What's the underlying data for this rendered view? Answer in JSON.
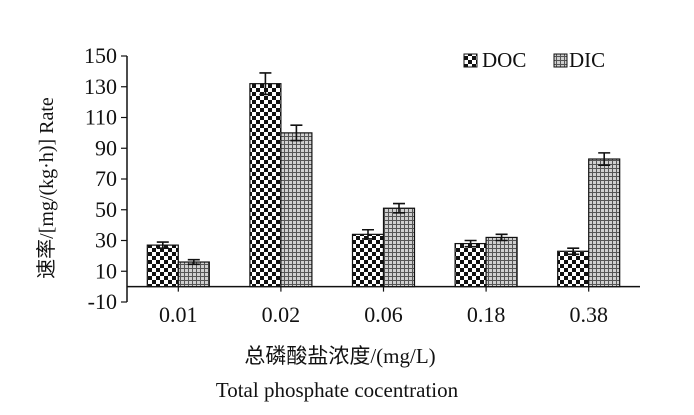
{
  "chart_data": {
    "type": "bar",
    "categories": [
      "0.01",
      "0.02",
      "0.06",
      "0.18",
      "0.38"
    ],
    "series": [
      {
        "name": "DOC",
        "pattern": "checker",
        "values": [
          27,
          132,
          34,
          28,
          23
        ],
        "errors": [
          2,
          7,
          3,
          2,
          2
        ]
      },
      {
        "name": "DIC",
        "pattern": "grid",
        "values": [
          16,
          100,
          51,
          32,
          83
        ],
        "errors": [
          1.5,
          5,
          3,
          2,
          4
        ]
      }
    ],
    "ylabel": "速率/[mg/(kg·h)] Rate",
    "xlabel": "总磷酸盐浓度/(mg/L)",
    "xlabel2": "Total phosphate cocentration",
    "ylim": [
      -10,
      150
    ],
    "yticks": [
      -10,
      10,
      30,
      50,
      70,
      90,
      110,
      130,
      150
    ],
    "grid": false,
    "legend_position": "top-right",
    "colors": {
      "ink": "#111111",
      "checker_light": "#ffffff",
      "grid_fill": "#cfcfcf"
    }
  }
}
